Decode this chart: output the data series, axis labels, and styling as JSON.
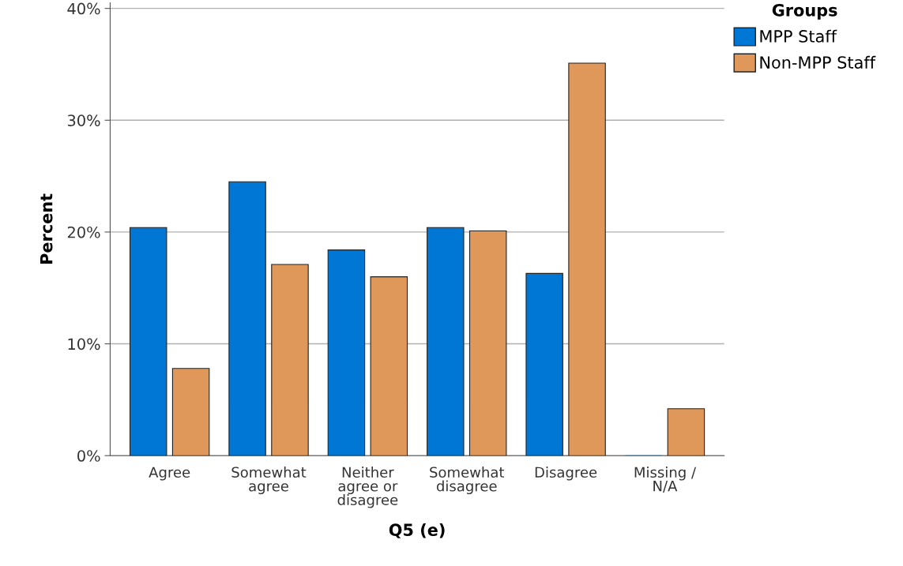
{
  "chart_data": {
    "type": "bar",
    "xlabel": "Q5 (e)",
    "ylabel": "Percent",
    "legend_title": "Groups",
    "categories": [
      "Agree",
      "Somewhat\nagree",
      "Neither\nagree or\ndisagree",
      "Somewhat\ndisagree",
      "Disagree",
      "Missing /\nN/A"
    ],
    "series": [
      {
        "name": "MPP Staff",
        "color": "#0077d4",
        "values": [
          20.4,
          24.5,
          18.4,
          20.4,
          16.3,
          0
        ]
      },
      {
        "name": "Non-MPP Staff",
        "color": "#e0985a",
        "values": [
          7.8,
          17.1,
          16.0,
          20.1,
          35.1,
          4.2
        ]
      }
    ],
    "ylim": [
      0,
      40.5
    ],
    "yticks": [
      {
        "value": 0,
        "label": "0%"
      },
      {
        "value": 10,
        "label": "10%"
      },
      {
        "value": 20,
        "label": "20%"
      },
      {
        "value": 30,
        "label": "30%"
      },
      {
        "value": 40,
        "label": "40%"
      }
    ],
    "grid": "y",
    "legend": "top right"
  }
}
